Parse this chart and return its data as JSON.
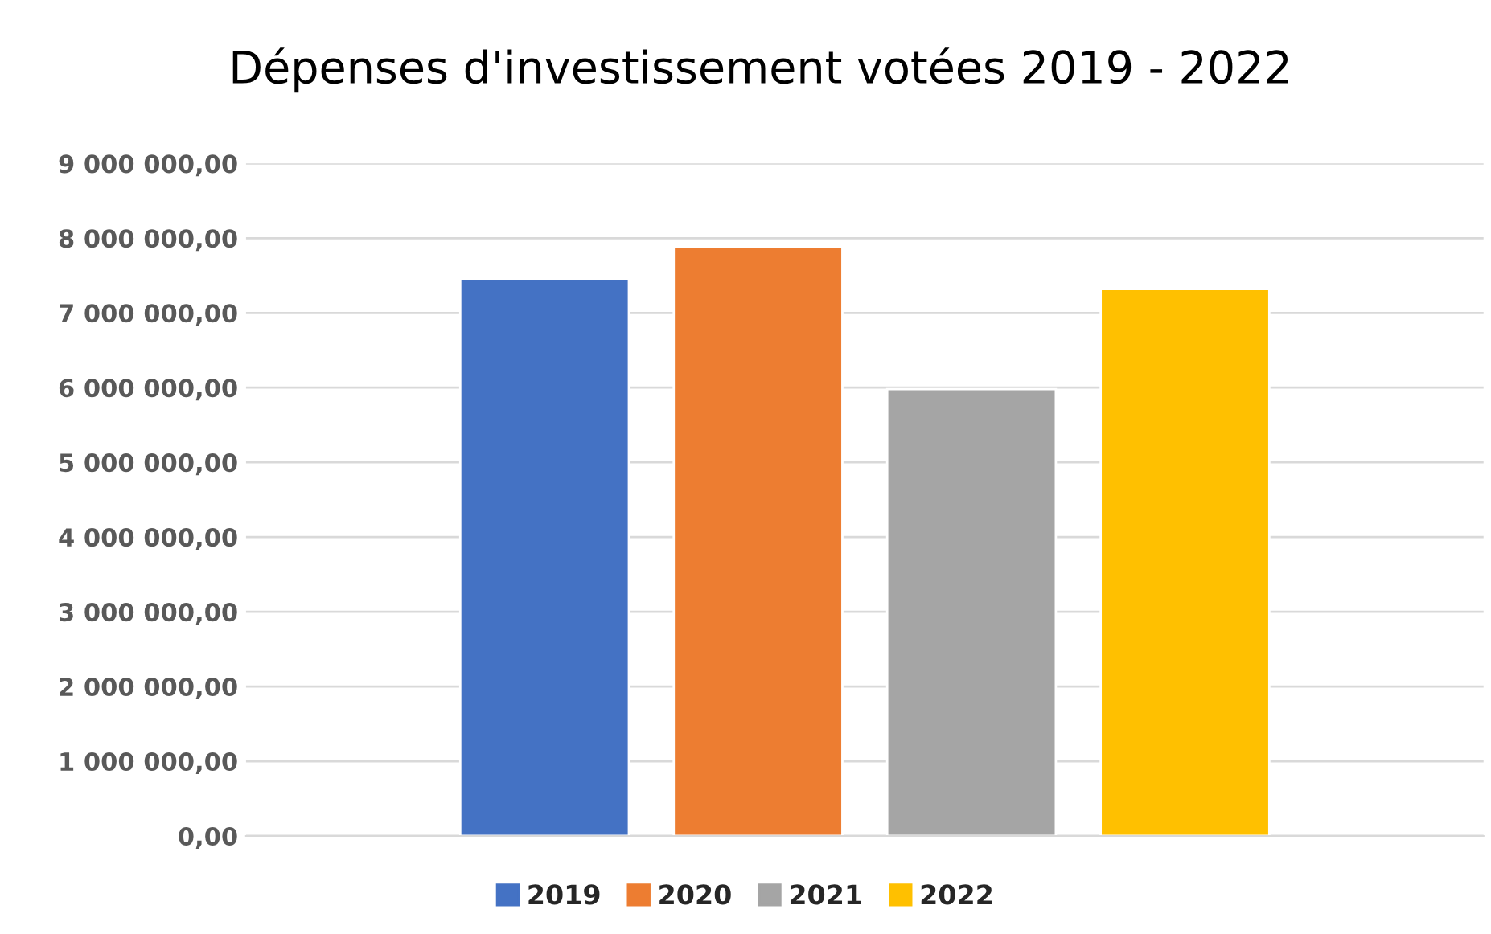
{
  "chart_data": {
    "type": "bar",
    "title": "Dépenses d'investissement votées 2019 - 2022",
    "categories": [
      null
    ],
    "series": [
      {
        "name": "2019",
        "color": "#4472c4",
        "values": [
          7460000
        ]
      },
      {
        "name": "2020",
        "color": "#ed7d31",
        "values": [
          7880000
        ]
      },
      {
        "name": "2021",
        "color": "#a5a5a5",
        "values": [
          5980000
        ]
      },
      {
        "name": "2022",
        "color": "#ffc000",
        "values": [
          7320000
        ]
      }
    ],
    "ylim": [
      0,
      9000000
    ],
    "yticks": [
      {
        "value": 0,
        "label": "0,00"
      },
      {
        "value": 1000000,
        "label": "1 000 000,00"
      },
      {
        "value": 2000000,
        "label": "2 000 000,00"
      },
      {
        "value": 3000000,
        "label": "3 000 000,00"
      },
      {
        "value": 4000000,
        "label": "4 000 000,00"
      },
      {
        "value": 5000000,
        "label": "5 000 000,00"
      },
      {
        "value": 6000000,
        "label": "6 000 000,00"
      },
      {
        "value": 7000000,
        "label": "7 000 000,00"
      },
      {
        "value": 8000000,
        "label": "8 000 000,00"
      },
      {
        "value": 9000000,
        "label": "9 000 000,00"
      }
    ],
    "grid": "y",
    "legend": "bottom"
  }
}
